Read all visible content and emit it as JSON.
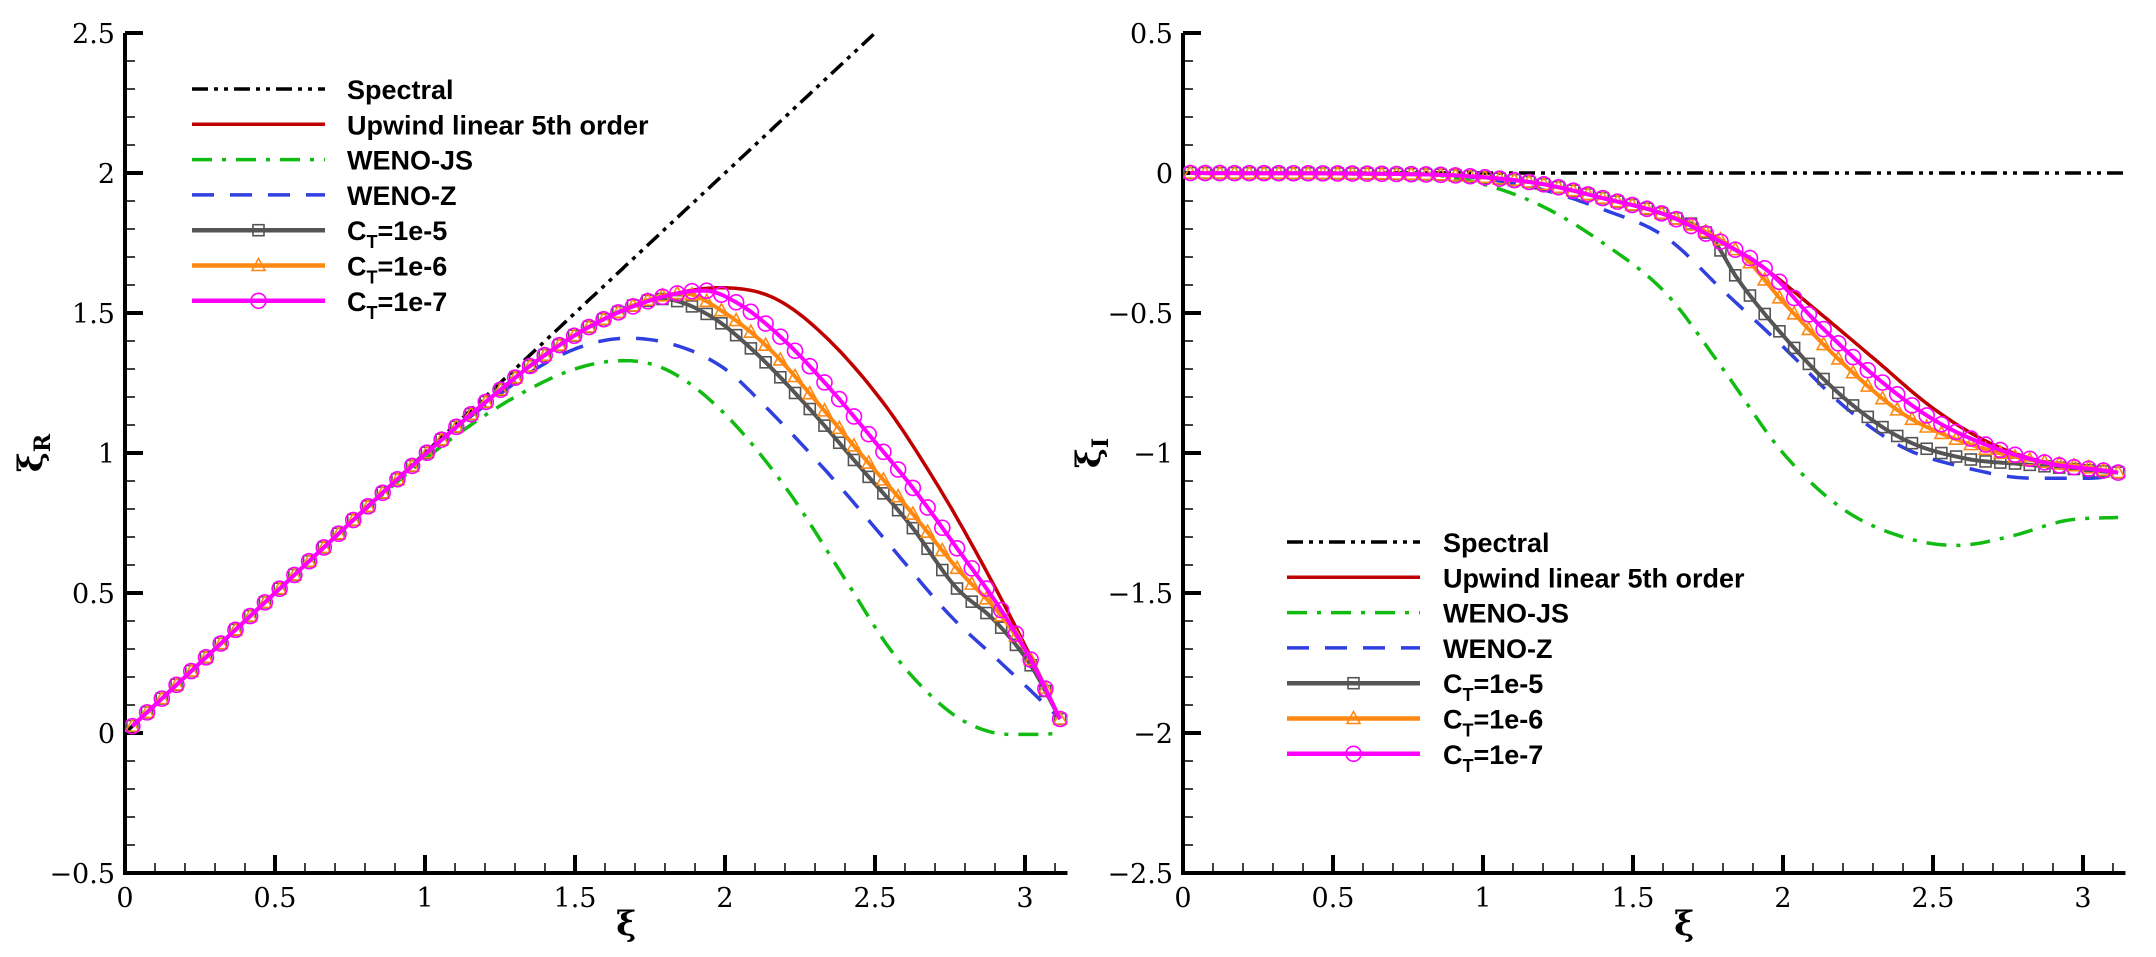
{
  "chart_data": [
    {
      "type": "line",
      "title": "",
      "xlabel": "ξ",
      "ylabel": "ξ_R",
      "ylabel_main": "ξ",
      "ylabel_sub": "R",
      "xlim": [
        0,
        3.14159
      ],
      "ylim": [
        -0.5,
        2.5
      ],
      "xticks": [
        0,
        0.5,
        1,
        1.5,
        2,
        2.5,
        3
      ],
      "xtick_labels": [
        "0",
        "0.5",
        "1",
        "1.5",
        "2",
        "2.5",
        "3"
      ],
      "yticks": [
        -0.5,
        0,
        0.5,
        1,
        1.5,
        2,
        2.5
      ],
      "ytick_labels": [
        "−0.5",
        "0",
        "0.5",
        "1",
        "1.5",
        "2",
        "2.5"
      ],
      "grid": false,
      "legend_position": "top-left",
      "series": [
        {
          "name": "Spectral",
          "color": "#000000",
          "style": "dash-dot-dot",
          "marker": "none",
          "x": [
            0,
            2.5
          ],
          "y": [
            0,
            2.5
          ]
        },
        {
          "name": "Upwind linear 5th order",
          "color": "#c00000",
          "style": "solid",
          "marker": "none",
          "x": [
            0.0245,
            0.5,
            1.0,
            1.2,
            1.4,
            1.6,
            1.8,
            1.98,
            2.15,
            2.3,
            2.52,
            2.7,
            2.85,
            3.02,
            3.117
          ],
          "y": [
            0.0245,
            0.5,
            0.995,
            1.18,
            1.35,
            1.48,
            1.56,
            1.59,
            1.56,
            1.45,
            1.19,
            0.9,
            0.62,
            0.27,
            0.05
          ]
        },
        {
          "name": "WENO-JS",
          "color": "#11bb11",
          "style": "dash-dot",
          "marker": "none",
          "x": [
            0.0245,
            0.5,
            0.9,
            1.1,
            1.3,
            1.5,
            1.66,
            1.8,
            1.98,
            2.2,
            2.4,
            2.55,
            2.68,
            2.8,
            2.95,
            3.05,
            3.117
          ],
          "y": [
            0.0245,
            0.5,
            0.89,
            1.06,
            1.2,
            1.3,
            1.33,
            1.3,
            1.16,
            0.88,
            0.55,
            0.3,
            0.14,
            0.04,
            -0.005,
            -0.005,
            0.0
          ]
        },
        {
          "name": "WENO-Z",
          "color": "#2f3fe0",
          "style": "dashed",
          "marker": "none",
          "x": [
            0.0245,
            0.5,
            1.0,
            1.2,
            1.4,
            1.55,
            1.68,
            1.85,
            2.0,
            2.14,
            2.35,
            2.55,
            2.75,
            2.9,
            3.03,
            3.117
          ],
          "y": [
            0.0245,
            0.5,
            0.995,
            1.17,
            1.32,
            1.39,
            1.41,
            1.38,
            1.3,
            1.16,
            0.92,
            0.67,
            0.42,
            0.27,
            0.14,
            0.05
          ]
        },
        {
          "name": "C_T=1e-5",
          "color": "#555555",
          "style": "solid",
          "marker": "square",
          "x": [
            0.0245,
            0.5,
            1.0,
            1.2,
            1.4,
            1.6,
            1.79,
            1.95,
            2.1,
            2.28,
            2.45,
            2.62,
            2.77,
            2.9,
            3.02,
            3.117
          ],
          "y": [
            0.0245,
            0.5,
            0.995,
            1.18,
            1.35,
            1.48,
            1.55,
            1.49,
            1.36,
            1.16,
            0.95,
            0.74,
            0.52,
            0.4,
            0.24,
            0.05
          ]
        },
        {
          "name": "C_T=1e-6",
          "color": "#ff8811",
          "style": "solid",
          "marker": "triangle",
          "x": [
            0.0245,
            0.5,
            1.0,
            1.2,
            1.4,
            1.6,
            1.86,
            2.0,
            2.15,
            2.3,
            2.45,
            2.62,
            2.78,
            2.92,
            3.02,
            3.117
          ],
          "y": [
            0.0245,
            0.5,
            0.995,
            1.18,
            1.35,
            1.48,
            1.57,
            1.5,
            1.37,
            1.19,
            1.0,
            0.79,
            0.58,
            0.42,
            0.26,
            0.05
          ]
        },
        {
          "name": "C_T=1e-7",
          "color": "#ff00ff",
          "style": "solid",
          "marker": "circle",
          "x": [
            0.0245,
            0.5,
            1.0,
            1.2,
            1.4,
            1.6,
            1.8,
            1.93,
            2.05,
            2.2,
            2.35,
            2.5,
            2.63,
            2.78,
            2.92,
            3.02,
            3.117
          ],
          "y": [
            0.0245,
            0.5,
            0.995,
            1.18,
            1.35,
            1.48,
            1.56,
            1.58,
            1.53,
            1.4,
            1.23,
            1.04,
            0.87,
            0.65,
            0.44,
            0.26,
            0.05
          ]
        }
      ]
    },
    {
      "type": "line",
      "title": "",
      "xlabel": "ξ",
      "ylabel": "ξ_I",
      "ylabel_main": "ξ",
      "ylabel_sub": "I",
      "xlim": [
        0,
        3.14159
      ],
      "ylim": [
        -2.5,
        0.5
      ],
      "xticks": [
        0,
        0.5,
        1,
        1.5,
        2,
        2.5,
        3
      ],
      "xtick_labels": [
        "0",
        "0.5",
        "1",
        "1.5",
        "2",
        "2.5",
        "3"
      ],
      "yticks": [
        -2.5,
        -2,
        -1.5,
        -1,
        -0.5,
        0,
        0.5
      ],
      "ytick_labels": [
        "−2.5",
        "−2",
        "−1.5",
        "−1",
        "−0.5",
        "0",
        "0.5"
      ],
      "grid": false,
      "legend_position": "bottom-left",
      "series": [
        {
          "name": "Spectral",
          "color": "#000000",
          "style": "dash-dot-dot",
          "marker": "none",
          "x": [
            0,
            3.14159
          ],
          "y": [
            0,
            0
          ]
        },
        {
          "name": "Upwind linear 5th order",
          "color": "#c00000",
          "style": "solid",
          "marker": "none",
          "x": [
            0.0245,
            0.8,
            1.0,
            1.2,
            1.4,
            1.61,
            1.8,
            1.95,
            2.1,
            2.3,
            2.5,
            2.7,
            2.9,
            3.05,
            3.117
          ],
          "y": [
            0,
            -0.005,
            -0.015,
            -0.04,
            -0.09,
            -0.15,
            -0.25,
            -0.35,
            -0.48,
            -0.66,
            -0.84,
            -0.97,
            -1.04,
            -1.06,
            -1.07
          ]
        },
        {
          "name": "WENO-JS",
          "color": "#11bb11",
          "style": "dash-dot",
          "marker": "none",
          "x": [
            0.0245,
            0.8,
            1.0,
            1.2,
            1.4,
            1.61,
            1.8,
            2.0,
            2.2,
            2.4,
            2.58,
            2.75,
            2.95,
            3.117
          ],
          "y": [
            0,
            -0.005,
            -0.04,
            -0.12,
            -0.25,
            -0.43,
            -0.7,
            -1.0,
            -1.2,
            -1.3,
            -1.33,
            -1.3,
            -1.24,
            -1.23
          ]
        },
        {
          "name": "WENO-Z",
          "color": "#2f3fe0",
          "style": "dashed",
          "marker": "none",
          "x": [
            0.0245,
            0.8,
            1.0,
            1.2,
            1.4,
            1.61,
            1.8,
            2.0,
            2.2,
            2.4,
            2.6,
            2.83,
            3.02,
            3.117
          ],
          "y": [
            0,
            -0.005,
            -0.02,
            -0.06,
            -0.13,
            -0.23,
            -0.42,
            -0.62,
            -0.83,
            -0.98,
            -1.05,
            -1.09,
            -1.09,
            -1.08
          ]
        },
        {
          "name": "C_T=1e-5",
          "color": "#555555",
          "style": "solid",
          "marker": "square",
          "x": [
            0.0245,
            0.8,
            1.0,
            1.2,
            1.4,
            1.61,
            1.76,
            1.85,
            2.0,
            2.2,
            2.4,
            2.61,
            2.8,
            3.0,
            3.117
          ],
          "y": [
            0,
            -0.005,
            -0.015,
            -0.04,
            -0.09,
            -0.15,
            -0.23,
            -0.38,
            -0.58,
            -0.8,
            -0.95,
            -1.02,
            -1.04,
            -1.06,
            -1.07
          ]
        },
        {
          "name": "C_T=1e-6",
          "color": "#ff8811",
          "style": "solid",
          "marker": "triangle",
          "x": [
            0.0245,
            0.8,
            1.0,
            1.2,
            1.4,
            1.61,
            1.86,
            2.0,
            2.2,
            2.4,
            2.6,
            2.8,
            3.0,
            3.117
          ],
          "y": [
            0,
            -0.005,
            -0.015,
            -0.04,
            -0.09,
            -0.15,
            -0.29,
            -0.46,
            -0.68,
            -0.86,
            -0.96,
            -1.02,
            -1.05,
            -1.07
          ]
        },
        {
          "name": "C_T=1e-7",
          "color": "#ff00ff",
          "style": "solid",
          "marker": "circle",
          "x": [
            0.0245,
            0.8,
            1.0,
            1.2,
            1.4,
            1.61,
            1.8,
            1.95,
            2.1,
            2.3,
            2.5,
            2.7,
            2.9,
            3.05,
            3.117
          ],
          "y": [
            0,
            -0.005,
            -0.015,
            -0.04,
            -0.09,
            -0.15,
            -0.25,
            -0.35,
            -0.52,
            -0.72,
            -0.88,
            -0.98,
            -1.04,
            -1.06,
            -1.07
          ]
        }
      ]
    }
  ]
}
